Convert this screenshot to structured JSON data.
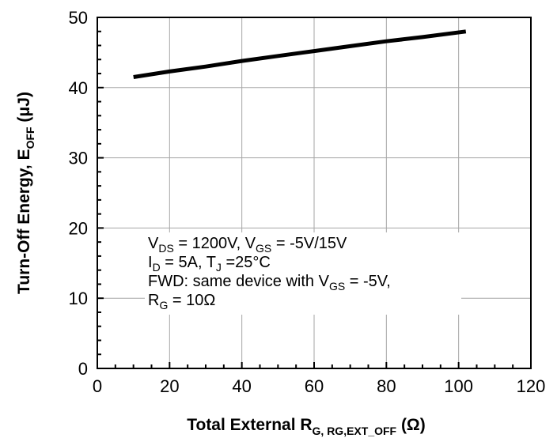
{
  "chart_data": {
    "type": "line",
    "xlabel": {
      "main": "Total External R",
      "sub": "G, RG,EXT_OFF",
      "unit": " (Ω)"
    },
    "ylabel": {
      "main": "Turn-Off Energy, E",
      "sub": "OFF",
      "unit": " (μJ)"
    },
    "xlim": [
      0,
      120
    ],
    "ylim": [
      0,
      50
    ],
    "x_ticks": [
      0,
      20,
      40,
      60,
      80,
      100,
      120
    ],
    "y_ticks": [
      0,
      10,
      20,
      30,
      40,
      50
    ],
    "grid": true,
    "series": [
      {
        "color": "#000000",
        "x": [
          10,
          20,
          30,
          40,
          50,
          60,
          70,
          80,
          90,
          102
        ],
        "y": [
          41.5,
          42.3,
          43.0,
          43.8,
          44.5,
          45.2,
          45.9,
          46.6,
          47.2,
          48.0
        ]
      }
    ],
    "annotation": [
      [
        {
          "t": "V",
          "s": false
        },
        {
          "t": "DS",
          "s": true
        },
        {
          "t": " = 1200V, V",
          "s": false
        },
        {
          "t": "GS",
          "s": true
        },
        {
          "t": " = -5V/15V",
          "s": false
        }
      ],
      [
        {
          "t": "I",
          "s": false
        },
        {
          "t": "D",
          "s": true
        },
        {
          "t": " = 5A, T",
          "s": false
        },
        {
          "t": "J",
          "s": true
        },
        {
          "t": " =25°C",
          "s": false
        }
      ],
      [
        {
          "t": "FWD: same device with V",
          "s": false
        },
        {
          "t": "GS",
          "s": true
        },
        {
          "t": " = -5V,",
          "s": false
        }
      ],
      [
        {
          "t": "R",
          "s": false
        },
        {
          "t": "G",
          "s": true
        },
        {
          "t": " = 10Ω",
          "s": false
        }
      ]
    ]
  }
}
